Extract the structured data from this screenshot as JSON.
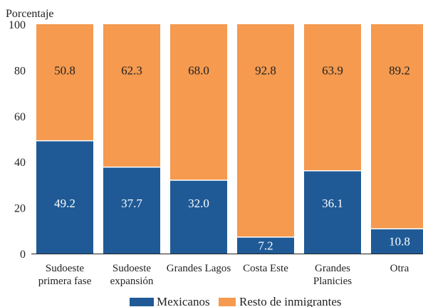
{
  "chart_data": {
    "type": "bar",
    "stacked": true,
    "ylabel": "Porcentaje",
    "ylim": [
      0,
      100
    ],
    "yticks": [
      "0",
      "20",
      "40",
      "60",
      "80",
      "100"
    ],
    "categories": [
      [
        "Sudoeste",
        "primera fase"
      ],
      [
        "Sudoeste",
        "expansión"
      ],
      [
        "Grandes Lagos"
      ],
      [
        "Costa Este"
      ],
      [
        "Grandes",
        "Planicies"
      ],
      [
        "Otra"
      ]
    ],
    "series": [
      {
        "name": "Mexicanos",
        "color": "#1f5a96",
        "values": [
          49.2,
          37.7,
          32.0,
          7.2,
          36.1,
          10.8
        ],
        "labels": [
          "49.2",
          "37.7",
          "32.0",
          "7.2",
          "36.1",
          "10.8"
        ]
      },
      {
        "name": "Resto de inmigrantes",
        "color": "#f59a4f",
        "values": [
          50.8,
          62.3,
          68.0,
          92.8,
          63.9,
          89.2
        ],
        "labels": [
          "50.8",
          "62.3",
          "68.0",
          "92.8",
          "63.9",
          "89.2"
        ]
      }
    ],
    "legend": "bottom",
    "grid": false
  }
}
